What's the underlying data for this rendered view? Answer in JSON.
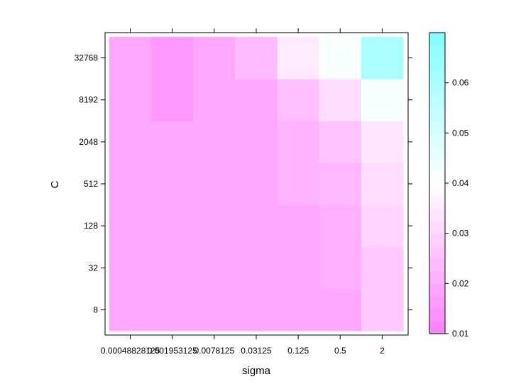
{
  "chart_data": {
    "type": "heatmap",
    "title": "",
    "xlabel": "sigma",
    "ylabel": "C",
    "x_categories": [
      "0.00048828125",
      "0.001953125",
      "0.0078125",
      "0.03125",
      "0.125",
      "0.5",
      "2"
    ],
    "y_categories": [
      "8",
      "32",
      "128",
      "512",
      "2048",
      "8192",
      "32768"
    ],
    "values": [
      [
        0.019,
        0.019,
        0.019,
        0.019,
        0.019,
        0.019,
        0.027
      ],
      [
        0.019,
        0.019,
        0.019,
        0.019,
        0.019,
        0.021,
        0.027
      ],
      [
        0.019,
        0.019,
        0.019,
        0.019,
        0.019,
        0.021,
        0.03
      ],
      [
        0.019,
        0.019,
        0.019,
        0.019,
        0.022,
        0.023,
        0.032
      ],
      [
        0.019,
        0.019,
        0.019,
        0.019,
        0.022,
        0.026,
        0.034
      ],
      [
        0.019,
        0.016,
        0.019,
        0.019,
        0.025,
        0.032,
        0.042
      ],
      [
        0.019,
        0.016,
        0.019,
        0.024,
        0.035,
        0.042,
        0.06
      ]
    ],
    "colorbar": {
      "min": 0.01,
      "max": 0.07,
      "ticks": [
        "0.01",
        "0.02",
        "0.03",
        "0.04",
        "0.05",
        "0.06"
      ],
      "low_color": "#ff80ff",
      "mid_color": "#ffffff",
      "high_color": "#80ffff"
    },
    "legend_position": "right"
  }
}
